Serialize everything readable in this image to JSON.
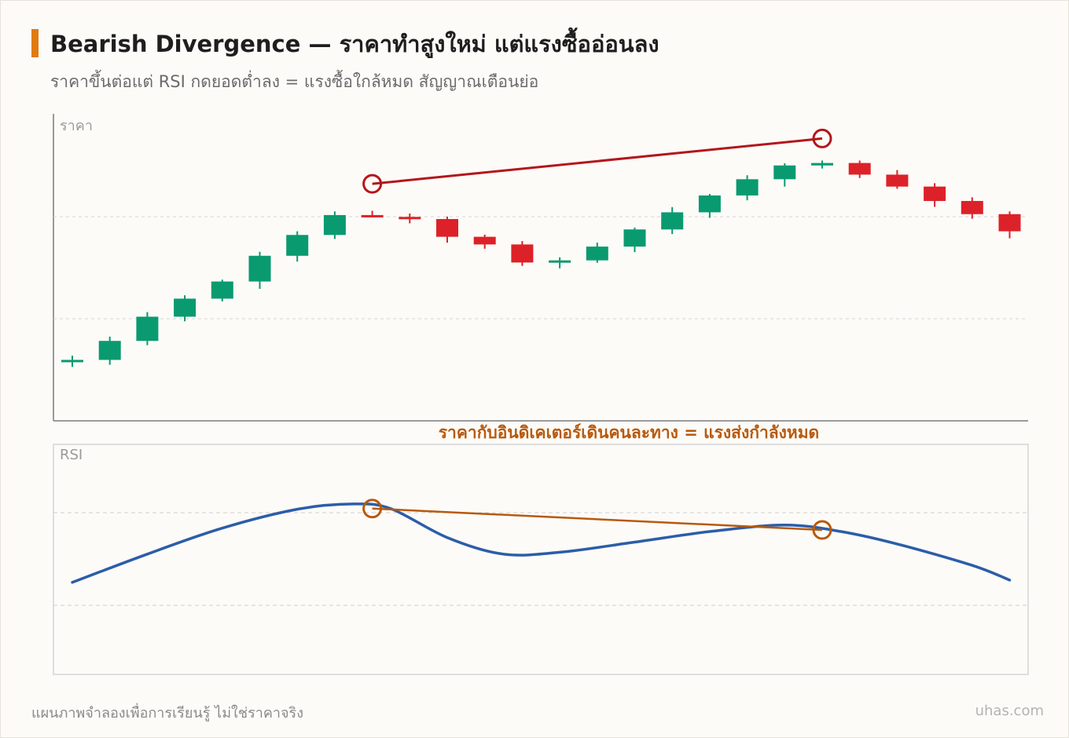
{
  "header": {
    "title": "Bearish Divergence — ราคาทำสูงใหม่ แต่แรงซื้ออ่อนลง",
    "subtitle": "ราคาขึ้นต่อแต่ RSI กดยอดต่ำลง = แรงซื้อใกล้หมด สัญญาณเตือนย่อ"
  },
  "footer": {
    "note": "แผนภาพจำลองเพื่อการเรียนรู้ ไม่ใช่ราคาจริง",
    "brand": "uhas.com"
  },
  "colors": {
    "bull": "#0a9a70",
    "bear": "#dc2228",
    "price_divergence": "#b3161c",
    "rsi_line": "#2c5da8",
    "rsi_divergence": "#b8590c",
    "annotation": "#b8590c",
    "accent": "#e07b12"
  },
  "chart_data": [
    {
      "type": "candlestick",
      "panel_label": "ราคา",
      "ylim": [
        0,
        100
      ],
      "grid": "dashed-horizontal",
      "candles": [
        {
          "o": 19.2,
          "h": 21.3,
          "l": 17.6,
          "c": 19.9
        },
        {
          "o": 19.9,
          "h": 27.5,
          "l": 18.3,
          "c": 26.1
        },
        {
          "o": 26.1,
          "h": 35.5,
          "l": 24.7,
          "c": 34.0
        },
        {
          "o": 34.0,
          "h": 41.0,
          "l": 32.5,
          "c": 39.9
        },
        {
          "o": 39.9,
          "h": 46.1,
          "l": 39.0,
          "c": 45.5
        },
        {
          "o": 45.5,
          "h": 55.2,
          "l": 43.1,
          "c": 53.9
        },
        {
          "o": 53.9,
          "h": 61.9,
          "l": 52.0,
          "c": 60.7
        },
        {
          "o": 60.7,
          "h": 68.4,
          "l": 59.4,
          "c": 67.2
        },
        {
          "o": 67.2,
          "h": 68.6,
          "l": 66.5,
          "c": 66.6
        },
        {
          "o": 66.6,
          "h": 67.7,
          "l": 64.5,
          "c": 65.9
        },
        {
          "o": 65.9,
          "h": 66.7,
          "l": 58.2,
          "c": 60.1
        },
        {
          "o": 60.1,
          "h": 60.8,
          "l": 56.2,
          "c": 57.6
        },
        {
          "o": 57.6,
          "h": 58.7,
          "l": 50.6,
          "c": 51.7
        },
        {
          "o": 51.7,
          "h": 53.4,
          "l": 49.8,
          "c": 52.4
        },
        {
          "o": 52.4,
          "h": 58.2,
          "l": 51.6,
          "c": 56.9
        },
        {
          "o": 56.9,
          "h": 63.1,
          "l": 55.1,
          "c": 62.5
        },
        {
          "o": 62.5,
          "h": 69.8,
          "l": 61.0,
          "c": 68.1
        },
        {
          "o": 68.1,
          "h": 74.1,
          "l": 66.3,
          "c": 73.6
        },
        {
          "o": 73.6,
          "h": 80.2,
          "l": 72.0,
          "c": 78.9
        },
        {
          "o": 78.9,
          "h": 84.1,
          "l": 76.5,
          "c": 83.4
        },
        {
          "o": 83.4,
          "h": 85.0,
          "l": 82.4,
          "c": 84.2
        },
        {
          "o": 84.2,
          "h": 85.0,
          "l": 79.3,
          "c": 80.4
        },
        {
          "o": 80.4,
          "h": 81.9,
          "l": 75.8,
          "c": 76.5
        },
        {
          "o": 76.5,
          "h": 77.6,
          "l": 69.9,
          "c": 71.8
        },
        {
          "o": 71.8,
          "h": 73.0,
          "l": 66.0,
          "c": 67.5
        },
        {
          "o": 67.5,
          "h": 68.4,
          "l": 59.6,
          "c": 61.9
        }
      ],
      "divergence": {
        "from_index": 8,
        "from_value": 77.4,
        "to_index": 20,
        "to_value": 92.2
      }
    },
    {
      "type": "line",
      "panel_label": "RSI",
      "ylim": [
        0,
        100
      ],
      "grid": "dashed-horizontal",
      "x": [
        0,
        2,
        4,
        6,
        7.5,
        8.5,
        10,
        11.5,
        13,
        15,
        17,
        19,
        20.5,
        22,
        24,
        25
      ],
      "values": [
        40,
        52.3,
        63.6,
        71.8,
        74.1,
        72,
        59.5,
        52.3,
        53.1,
        57.5,
        62.1,
        64.9,
        62.1,
        56.7,
        47.4,
        41
      ],
      "divergence": {
        "from_index": 8,
        "from_value": 72.1,
        "to_index": 20,
        "to_value": 62.8
      }
    }
  ],
  "annotation": {
    "text": "ราคากับอินดิเคเตอร์เดินคนละทาง = แรงส่งกำลังหมด"
  }
}
